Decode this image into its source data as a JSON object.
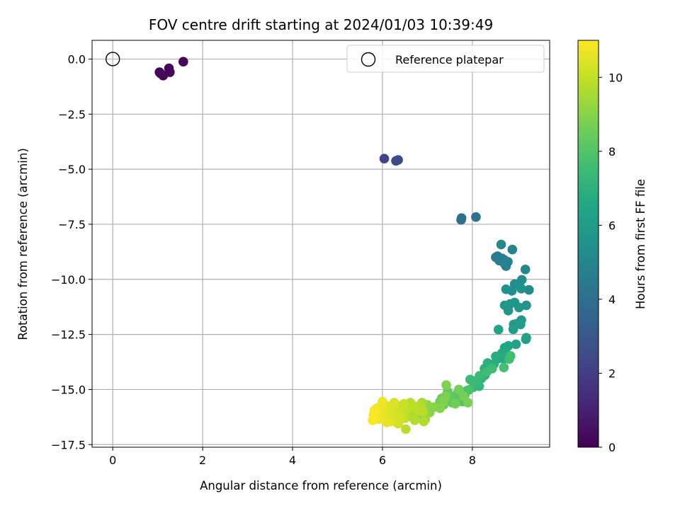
{
  "chart_data": {
    "type": "scatter",
    "title": "FOV centre drift starting at 2024/01/03 10:39:49",
    "xlabel": "Angular distance from reference (arcmin)",
    "ylabel": "Rotation from reference (arcmin)",
    "colorbar_label": "Hours from first FF file",
    "xlim": [
      -0.46,
      9.72
    ],
    "ylim": [
      -17.62,
      0.85
    ],
    "clim": [
      0,
      11
    ],
    "x_ticks": [
      0,
      2,
      4,
      6,
      8
    ],
    "x_tick_labels": [
      "0",
      "2",
      "4",
      "6",
      "8"
    ],
    "y_ticks": [
      0,
      -2.5,
      -5,
      -7.5,
      -10,
      -12.5,
      -15,
      -17.5
    ],
    "y_tick_labels": [
      "0.0",
      "−2.5",
      "−5.0",
      "−7.5",
      "−10.0",
      "−12.5",
      "−15.0",
      "−17.5"
    ],
    "colorbar_ticks": [
      0,
      2,
      4,
      6,
      8,
      10
    ],
    "colorbar_tick_labels": [
      "0",
      "2",
      "4",
      "6",
      "8",
      "10"
    ],
    "colormap": "viridis",
    "grid": true,
    "legend": {
      "label": "Reference platepar",
      "position": "top-right"
    },
    "reference": {
      "x": 0,
      "y": 0
    },
    "series": [
      {
        "name": "FOV centre",
        "x": [
          1.04,
          1.12,
          1.27,
          1.25,
          1.57,
          1.06
        ],
        "y": [
          -0.6,
          -0.75,
          -0.6,
          -0.42,
          -0.12,
          -0.65
        ],
        "t": [
          0.0,
          0.05,
          0.1,
          0.15,
          0.2,
          0.25
        ]
      },
      {
        "name": "FOV centre",
        "x": [
          6.04,
          6.3,
          6.35
        ],
        "y": [
          -4.52,
          -4.62,
          -4.58
        ],
        "t": [
          2.2,
          2.4,
          2.5
        ]
      },
      {
        "name": "FOV centre",
        "x": [
          7.76,
          7.75,
          8.08
        ],
        "y": [
          -7.22,
          -7.3,
          -7.17
        ],
        "t": [
          3.9,
          4.0,
          4.1
        ]
      },
      {
        "name": "FOV centre",
        "x": [
          8.52,
          8.56,
          8.6,
          8.66,
          8.75,
          8.79,
          8.7,
          8.72,
          8.89,
          8.64
        ],
        "y": [
          -9.0,
          -8.95,
          -9.15,
          -9.05,
          -9.4,
          -9.2,
          -9.1,
          -9.3,
          -8.65,
          -8.42
        ],
        "t": [
          4.5,
          4.55,
          4.6,
          4.65,
          4.7,
          4.75,
          4.8,
          4.85,
          4.9,
          5.0
        ]
      },
      {
        "name": "FOV centre",
        "x": [
          9.18,
          9.26,
          9.1,
          9.04,
          8.94,
          8.88,
          8.75,
          9.09,
          9.2,
          9.04,
          8.94,
          8.84,
          8.8,
          8.72
        ],
        "y": [
          -9.55,
          -10.48,
          -10.02,
          -10.2,
          -10.22,
          -10.52,
          -10.45,
          -10.42,
          -11.18,
          -11.28,
          -11.05,
          -11.12,
          -11.42,
          -11.18
        ],
        "t": [
          5.1,
          5.2,
          5.3,
          5.35,
          5.4,
          5.45,
          5.5,
          5.55,
          5.6,
          5.65,
          5.7,
          5.75,
          5.8,
          5.85
        ]
      },
      {
        "name": "FOV centre",
        "x": [
          9.09,
          8.98,
          8.92,
          8.91,
          9.07,
          9.19,
          9.2,
          8.97,
          8.58
        ],
        "y": [
          -11.85,
          -12.02,
          -12.05,
          -12.27,
          -12.05,
          -12.72,
          -12.65,
          -12.95,
          -12.28
        ],
        "t": [
          5.9,
          5.95,
          6.0,
          6.05,
          6.1,
          6.2,
          6.25,
          6.3,
          6.35
        ]
      },
      {
        "name": "FOV centre",
        "x": [
          8.8,
          8.72,
          8.76,
          8.66,
          8.7,
          8.58,
          8.52,
          8.48,
          8.4,
          8.34,
          8.27,
          8.28,
          8.2,
          8.12,
          8.15,
          8.08,
          8.02,
          8.0,
          7.95,
          8.16,
          8.32,
          8.44,
          8.82,
          8.85
        ],
        "y": [
          -13.02,
          -13.1,
          -13.4,
          -13.35,
          -13.6,
          -13.6,
          -13.5,
          -13.85,
          -14.0,
          -13.8,
          -14.05,
          -14.35,
          -14.5,
          -14.65,
          -14.85,
          -14.7,
          -14.9,
          -14.6,
          -14.55,
          -14.38,
          -14.2,
          -14.05,
          -13.62,
          -13.48
        ],
        "t": [
          6.5,
          6.55,
          6.6,
          6.65,
          6.7,
          6.75,
          6.8,
          6.85,
          6.9,
          6.95,
          7.0,
          7.05,
          7.1,
          7.15,
          7.2,
          7.25,
          7.3,
          7.35,
          7.4,
          7.45,
          7.5,
          7.55,
          7.6,
          7.65
        ]
      },
      {
        "name": "FOV centre",
        "x": [
          8.7,
          7.92,
          7.88,
          7.83,
          7.78,
          7.72,
          7.66,
          7.63,
          7.58,
          7.55,
          7.5,
          7.45,
          7.4,
          7.36,
          7.32,
          7.28,
          7.25,
          7.62,
          7.7,
          7.8,
          7.9
        ],
        "y": [
          -14.0,
          -15.02,
          -15.05,
          -15.25,
          -15.55,
          -15.4,
          -15.2,
          -15.5,
          -15.35,
          -15.6,
          -15.3,
          -15.1,
          -15.45,
          -15.7,
          -15.4,
          -15.55,
          -15.8,
          -15.65,
          -15.0,
          -15.3,
          -15.6
        ],
        "t": [
          7.7,
          7.8,
          7.85,
          7.9,
          7.95,
          8.0,
          8.05,
          8.1,
          8.15,
          8.2,
          8.25,
          8.3,
          8.35,
          8.4,
          8.45,
          8.5,
          8.55,
          8.6,
          8.65,
          8.7,
          8.75
        ]
      },
      {
        "name": "FOV centre",
        "x": [
          7.4,
          7.42,
          7.35,
          7.28,
          7.15,
          7.05,
          7.0,
          6.95,
          6.9,
          6.85,
          6.8,
          6.95,
          6.88,
          6.75,
          6.7,
          6.65,
          6.6,
          6.55,
          6.92,
          6.85,
          6.72,
          6.62,
          6.52,
          6.9,
          6.8,
          6.7
        ],
        "y": [
          -15.3,
          -14.8,
          -15.55,
          -15.85,
          -15.8,
          -16.05,
          -15.7,
          -15.9,
          -16.2,
          -15.8,
          -16.1,
          -16.35,
          -15.6,
          -15.8,
          -16.2,
          -16.05,
          -15.85,
          -16.25,
          -16.45,
          -15.7,
          -16.4,
          -15.6,
          -16.8,
          -16.0,
          -15.95,
          -15.75
        ],
        "t": [
          8.8,
          8.85,
          8.9,
          8.95,
          9.0,
          9.05,
          9.1,
          9.15,
          9.2,
          9.25,
          9.3,
          9.35,
          9.4,
          9.45,
          9.5,
          9.55,
          9.6,
          9.65,
          9.7,
          9.72,
          9.75,
          9.78,
          9.8,
          9.82,
          9.85,
          9.88
        ]
      },
      {
        "name": "FOV centre",
        "x": [
          6.55,
          6.5,
          6.45,
          6.42,
          6.38,
          6.33,
          6.3,
          6.26,
          6.22,
          6.18,
          6.14,
          6.1,
          6.06,
          6.03,
          6.0,
          5.98,
          5.95,
          5.92,
          5.88,
          5.85,
          5.82,
          5.78,
          5.8,
          6.35,
          6.25,
          6.1,
          6.0,
          6.48,
          6.4,
          6.2
        ],
        "y": [
          -15.9,
          -16.3,
          -15.7,
          -16.05,
          -16.4,
          -15.8,
          -16.1,
          -15.6,
          -16.3,
          -15.9,
          -16.15,
          -15.75,
          -16.4,
          -15.95,
          -16.2,
          -15.7,
          -16.0,
          -16.35,
          -15.85,
          -16.1,
          -15.95,
          -16.4,
          -16.15,
          -16.55,
          -15.65,
          -16.5,
          -15.55,
          -15.65,
          -16.25,
          -16.45
        ],
        "t": [
          9.9,
          9.95,
          10.0,
          10.05,
          10.1,
          10.15,
          10.2,
          10.25,
          10.3,
          10.35,
          10.4,
          10.45,
          10.5,
          10.55,
          10.6,
          10.65,
          10.7,
          10.75,
          10.8,
          10.85,
          10.9,
          10.92,
          10.95,
          10.2,
          10.4,
          10.6,
          10.8,
          10.1,
          10.3,
          10.5
        ]
      }
    ]
  }
}
